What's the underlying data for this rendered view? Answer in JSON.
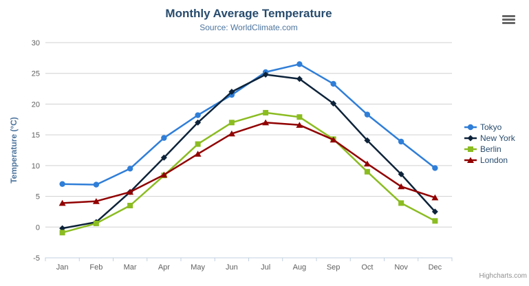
{
  "chart_data": {
    "type": "line",
    "title": "Monthly Average Temperature",
    "subtitle": "Source: WorldClimate.com",
    "categories": [
      "Jan",
      "Feb",
      "Mar",
      "Apr",
      "May",
      "Jun",
      "Jul",
      "Aug",
      "Sep",
      "Oct",
      "Nov",
      "Dec"
    ],
    "xlabel": "",
    "ylabel": "Temperature (°C)",
    "ylim": [
      -5,
      30
    ],
    "ytick_step": 5,
    "ytick_labels": [
      "-5",
      "0",
      "5",
      "10",
      "15",
      "20",
      "25",
      "30"
    ],
    "grid": true,
    "legend_position": "right",
    "series": [
      {
        "name": "Tokyo",
        "color": "#2f7ed8",
        "marker": "circle",
        "values": [
          7.0,
          6.9,
          9.5,
          14.5,
          18.2,
          21.5,
          25.2,
          26.5,
          23.3,
          18.3,
          13.9,
          9.6
        ]
      },
      {
        "name": "New York",
        "color": "#0d233a",
        "marker": "diamond",
        "values": [
          -0.2,
          0.8,
          5.7,
          11.3,
          17.0,
          22.0,
          24.8,
          24.1,
          20.1,
          14.1,
          8.6,
          2.5
        ]
      },
      {
        "name": "Berlin",
        "color": "#8bbc21",
        "marker": "square",
        "values": [
          -0.9,
          0.6,
          3.5,
          8.4,
          13.5,
          17.0,
          18.6,
          17.9,
          14.3,
          9.0,
          3.9,
          1.0
        ]
      },
      {
        "name": "London",
        "color": "#910000",
        "marker": "triangle",
        "values": [
          3.9,
          4.2,
          5.7,
          8.5,
          11.9,
          15.2,
          17.0,
          16.6,
          14.2,
          10.3,
          6.6,
          4.8
        ]
      }
    ]
  },
  "credits": {
    "label": "Highcharts.com"
  },
  "theme": {
    "title_color": "#274b6d",
    "subtitle_color": "#4d759e",
    "axis_title_color": "#4d759e",
    "axis_label_color": "#606060",
    "axis_line_color": "#c0d0e0",
    "gridline_color": "#d0d0d0",
    "legend_text_color": "#274b6d",
    "credits_color": "#909090",
    "menu_icon_color": "#666666",
    "background_color": "#ffffff"
  }
}
